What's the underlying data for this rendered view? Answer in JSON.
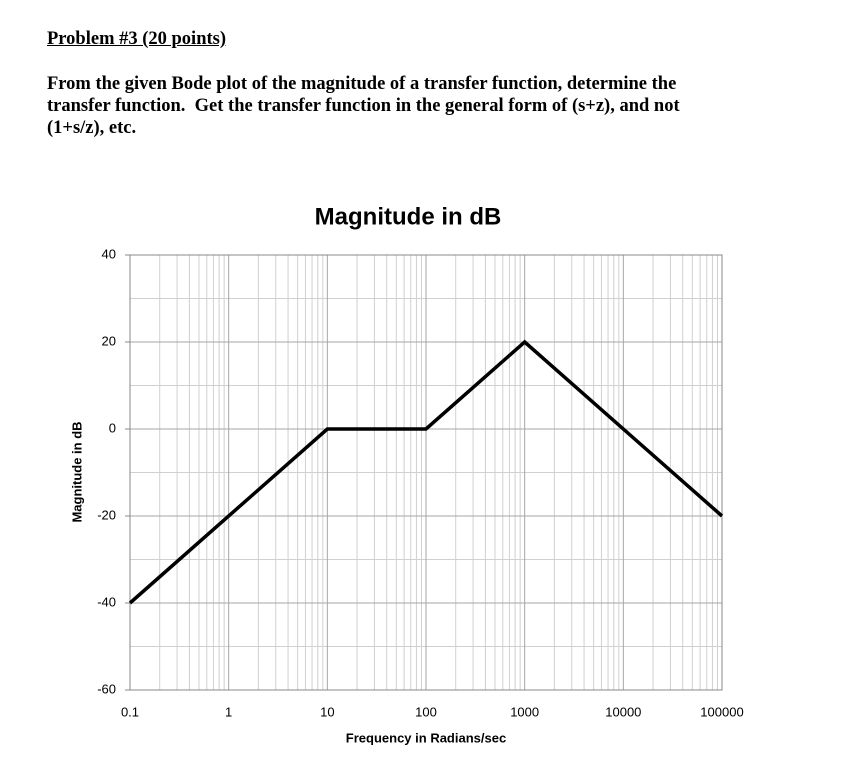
{
  "problem": {
    "heading": "Problem #3 (20 points)",
    "lines": [
      "From the given Bode plot of the magnitude of a transfer function, determine the",
      "transfer function.  Get the transfer function in the general form of (s+z), and not",
      "(1+s/z), etc."
    ]
  },
  "chart_data": {
    "type": "line",
    "title": "Magnitude in dB",
    "x_label": "Frequency in Radians/sec",
    "y_label": "Magnitude in dB",
    "x": [
      0.1,
      10,
      100,
      1000,
      100000
    ],
    "values": [
      -40,
      0,
      0,
      20,
      -20
    ],
    "color": "#000000",
    "log_x": true,
    "xlim": [
      0.1,
      100000
    ],
    "xticks": [
      0.1,
      1,
      10,
      100,
      1000,
      10000,
      100000
    ],
    "ylim": [
      -60,
      40
    ],
    "yticks": [
      -60,
      -40,
      -20,
      0,
      20,
      40
    ],
    "grid": true,
    "minor_grid": true
  }
}
